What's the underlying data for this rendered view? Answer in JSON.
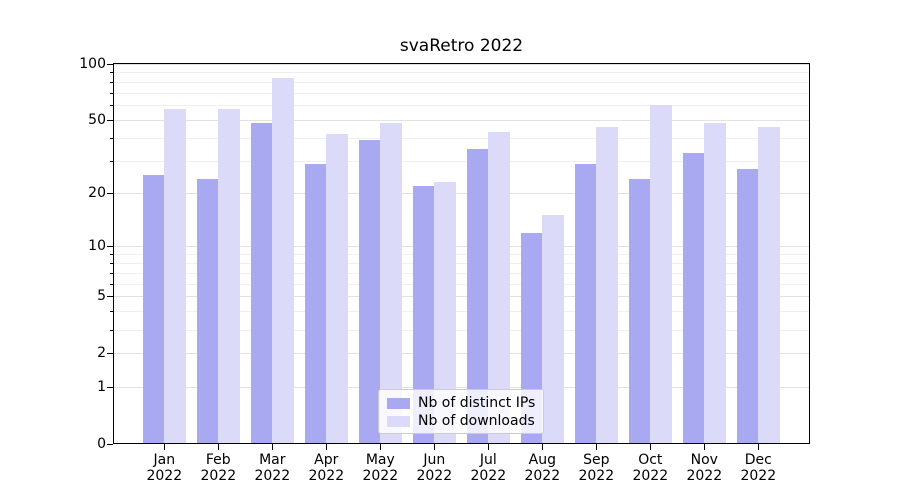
{
  "title": "svaRetro 2022",
  "chart_data": {
    "type": "bar",
    "title": "svaRetro 2022",
    "categories": [
      "Jan",
      "Feb",
      "Mar",
      "Apr",
      "May",
      "Jun",
      "Jul",
      "Aug",
      "Sep",
      "Oct",
      "Nov",
      "Dec"
    ],
    "year_label": "2022",
    "series": [
      {
        "name": "Nb of distinct IPs",
        "color": "#a9a9f1",
        "values": [
          25,
          24,
          48,
          29,
          39,
          22,
          35,
          12,
          29,
          24,
          33,
          27
        ]
      },
      {
        "name": "Nb of downloads",
        "color": "#dbdbf9",
        "values": [
          57,
          57,
          84,
          42,
          48,
          23,
          43,
          15,
          46,
          60,
          48,
          46
        ]
      }
    ],
    "xlabel": "",
    "ylabel": "",
    "yscale": "log(1+y)",
    "ylim": [
      0,
      100
    ],
    "y_ticks_major": [
      0,
      1,
      2,
      5,
      10,
      20,
      50,
      100
    ],
    "y_ticks_minor": [
      3,
      4,
      6,
      7,
      8,
      9,
      30,
      40,
      60,
      70,
      80,
      90
    ],
    "grid": "horizontal",
    "legend_position": "lower center"
  }
}
